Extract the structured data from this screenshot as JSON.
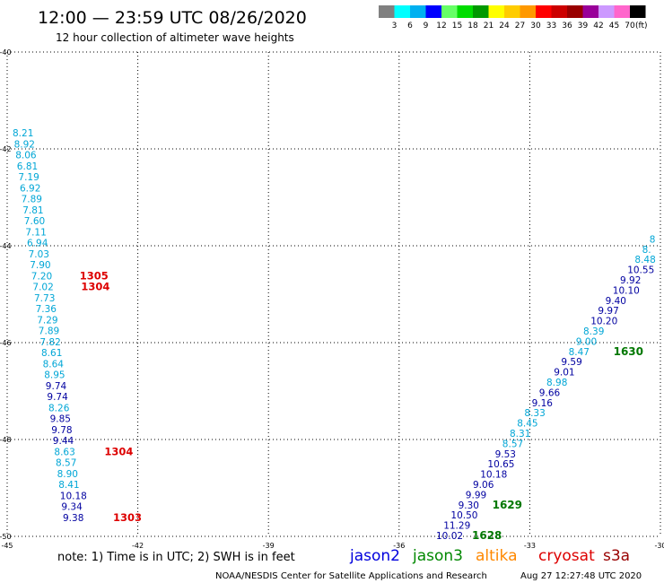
{
  "header": {
    "title": "12:00 — 23:59 UTC 08/26/2020",
    "subtitle": "12 hour collection of altimeter wave heights"
  },
  "color_scale": {
    "unit": "(ft)",
    "entries": [
      {
        "label": "3",
        "color": "#808080"
      },
      {
        "label": "6",
        "color": "#00ffff"
      },
      {
        "label": "9",
        "color": "#00b0f0"
      },
      {
        "label": "12",
        "color": "#0000ff"
      },
      {
        "label": "15",
        "color": "#66ff66"
      },
      {
        "label": "18",
        "color": "#00dd00"
      },
      {
        "label": "21",
        "color": "#009900"
      },
      {
        "label": "24",
        "color": "#ffff00"
      },
      {
        "label": "27",
        "color": "#ffcc00"
      },
      {
        "label": "30",
        "color": "#ff9900"
      },
      {
        "label": "33",
        "color": "#ff0000"
      },
      {
        "label": "36",
        "color": "#cc0000"
      },
      {
        "label": "39",
        "color": "#990000"
      },
      {
        "label": "42",
        "color": "#990099"
      },
      {
        "label": "45",
        "color": "#cc99ff"
      },
      {
        "label": "70",
        "color": "#ff66cc"
      },
      {
        "label": "",
        "color": "#000000"
      }
    ]
  },
  "map": {
    "lon_range": [
      -45,
      -30
    ],
    "lat_range": [
      -50,
      -40
    ],
    "lon_ticks": [
      "-45",
      "-42",
      "-39",
      "-36",
      "-33",
      "-30"
    ],
    "lat_ticks": [
      "-40",
      "-42",
      "-44",
      "-46",
      "-48",
      "-50"
    ],
    "grid": "dotted"
  },
  "colors": {
    "cyan": "#00a6d6",
    "navy": "#0000a0",
    "red": "#dd0000",
    "green": "#007700"
  },
  "west_track": [
    {
      "v": "8.21",
      "c": "cyan"
    },
    {
      "v": "8.92",
      "c": "cyan"
    },
    {
      "v": "8.06",
      "c": "cyan"
    },
    {
      "v": "6.81",
      "c": "cyan"
    },
    {
      "v": "7.19",
      "c": "cyan"
    },
    {
      "v": "6.92",
      "c": "cyan"
    },
    {
      "v": "7.89",
      "c": "cyan"
    },
    {
      "v": "7.81",
      "c": "cyan"
    },
    {
      "v": "7.60",
      "c": "cyan"
    },
    {
      "v": "7.11",
      "c": "cyan"
    },
    {
      "v": "6.94",
      "c": "cyan"
    },
    {
      "v": "7.03",
      "c": "cyan"
    },
    {
      "v": "7.90",
      "c": "cyan"
    },
    {
      "v": "7.20",
      "c": "cyan"
    },
    {
      "v": "7.02",
      "c": "cyan"
    },
    {
      "v": "7.73",
      "c": "cyan"
    },
    {
      "v": "7.36",
      "c": "cyan"
    },
    {
      "v": "7.29",
      "c": "cyan"
    },
    {
      "v": "7.89",
      "c": "cyan"
    },
    {
      "v": "7.82",
      "c": "cyan"
    },
    {
      "v": "8.61",
      "c": "cyan"
    },
    {
      "v": "8.64",
      "c": "cyan"
    },
    {
      "v": "8.95",
      "c": "cyan"
    },
    {
      "v": "9.74",
      "c": "navy"
    },
    {
      "v": "9.74",
      "c": "navy"
    },
    {
      "v": "8.26",
      "c": "cyan"
    },
    {
      "v": "9.85",
      "c": "navy"
    },
    {
      "v": "9.78",
      "c": "navy"
    },
    {
      "v": "9.44",
      "c": "navy"
    },
    {
      "v": "8.63",
      "c": "cyan"
    },
    {
      "v": "8.57",
      "c": "cyan"
    },
    {
      "v": "8.90",
      "c": "cyan"
    },
    {
      "v": "8.41",
      "c": "cyan"
    },
    {
      "v": "10.18",
      "c": "navy"
    },
    {
      "v": "9.34",
      "c": "navy"
    },
    {
      "v": "9.38",
      "c": "navy"
    }
  ],
  "west_times": [
    {
      "t": "1305",
      "c": "red",
      "row": 13
    },
    {
      "t": "1304",
      "c": "red",
      "row": 14
    },
    {
      "t": "1304",
      "c": "red",
      "row": 29
    },
    {
      "t": "1303",
      "c": "red",
      "row": 35
    }
  ],
  "east_track": [
    {
      "v": "10.02",
      "c": "navy"
    },
    {
      "v": "11.29",
      "c": "navy"
    },
    {
      "v": "10.50",
      "c": "navy"
    },
    {
      "v": "9.30",
      "c": "navy"
    },
    {
      "v": "9.99",
      "c": "navy"
    },
    {
      "v": "9.06",
      "c": "navy"
    },
    {
      "v": "10.18",
      "c": "navy"
    },
    {
      "v": "10.65",
      "c": "navy"
    },
    {
      "v": "9.53",
      "c": "navy"
    },
    {
      "v": "8.57",
      "c": "cyan"
    },
    {
      "v": "8.31",
      "c": "cyan"
    },
    {
      "v": "8.45",
      "c": "cyan"
    },
    {
      "v": "8.33",
      "c": "cyan"
    },
    {
      "v": "9.16",
      "c": "navy"
    },
    {
      "v": "9.66",
      "c": "navy"
    },
    {
      "v": "8.98",
      "c": "cyan"
    },
    {
      "v": "9.01",
      "c": "navy"
    },
    {
      "v": "9.59",
      "c": "navy"
    },
    {
      "v": "8.47",
      "c": "cyan"
    },
    {
      "v": "9.00",
      "c": "cyan"
    },
    {
      "v": "8.39",
      "c": "cyan"
    },
    {
      "v": "10.20",
      "c": "navy"
    },
    {
      "v": "9.97",
      "c": "navy"
    },
    {
      "v": "9.40",
      "c": "navy"
    },
    {
      "v": "10.10",
      "c": "navy"
    },
    {
      "v": "9.92",
      "c": "navy"
    },
    {
      "v": "10.55",
      "c": "navy"
    },
    {
      "v": "8.48",
      "c": "cyan"
    },
    {
      "v": "8.",
      "c": "cyan"
    },
    {
      "v": "8",
      "c": "cyan"
    }
  ],
  "east_times": [
    {
      "t": "1628",
      "c": "green",
      "row": 0
    },
    {
      "t": "1629",
      "c": "green",
      "row": 3
    },
    {
      "t": "1630",
      "c": "green",
      "row": 18
    }
  ],
  "footer": {
    "note": "note:  1) Time is in UTC;  2) SWH is in feet",
    "credit": "NOAA/NESDIS Center for Satellite Applications and Research",
    "timestamp": "Aug 27 12:27:48 UTC 2020"
  },
  "satellites": [
    {
      "name": "jason2",
      "color": "#0000dd"
    },
    {
      "name": "jason3",
      "color": "#008800"
    },
    {
      "name": "altika",
      "color": "#ff8800"
    },
    {
      "name": "cryosat",
      "color": "#dd0000"
    },
    {
      "name": "s3a",
      "color": "#990000"
    }
  ]
}
